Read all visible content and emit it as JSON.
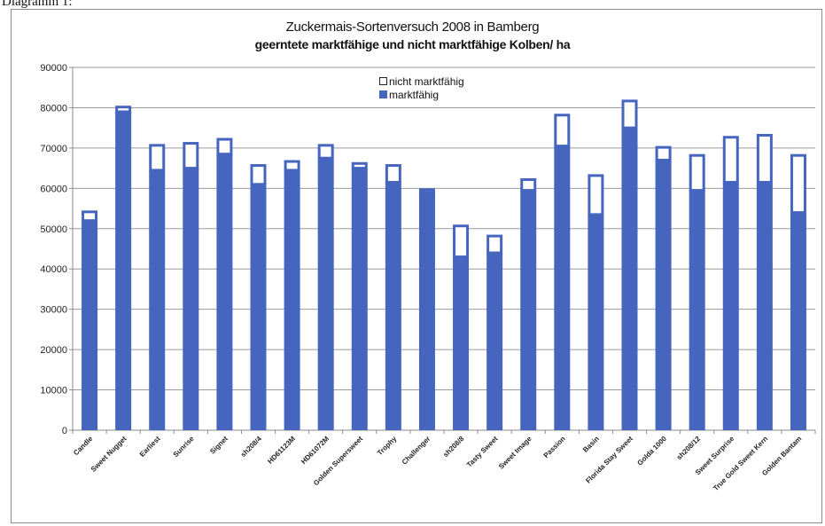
{
  "caption": "Diagramm 1:",
  "chart_data": {
    "type": "bar",
    "stacked": true,
    "title": "Zuckermais-Sortenversuch 2008 in Bamberg",
    "subtitle": "geerntete marktfähige und nicht marktfähige Kolben/ ha",
    "ylim": [
      0,
      90000
    ],
    "yticks": [
      0,
      10000,
      20000,
      30000,
      40000,
      50000,
      60000,
      70000,
      80000,
      90000
    ],
    "grid": true,
    "legend_position": "top-center",
    "categories": [
      "Candle",
      "Sweet Nugget",
      "Earliest",
      "Sunrise",
      "Signet",
      "sh208/4",
      "HD61123M",
      "HD61072M",
      "Golden Supersweet",
      "Trophy",
      "Challenger",
      "sh208/8",
      "Tasty Sweet",
      "Sweet Image",
      "Passion",
      "Basin",
      "Florida Stay Sweet",
      "Golda 1000",
      "sh208/12",
      "Sweet Surprise",
      "True Gold Sweet Kern",
      "Golden Bantam"
    ],
    "series": [
      {
        "name": "marktfähig",
        "color": "#4565bf",
        "values": [
          52000,
          79000,
          64500,
          65000,
          68500,
          61000,
          64500,
          67500,
          65000,
          61500,
          59000,
          43000,
          44000,
          59500,
          70500,
          53500,
          75000,
          67000,
          59500,
          61500,
          61500,
          54000
        ]
      },
      {
        "name": "nicht marktfähig",
        "color": "#ffffff",
        "values": [
          2500,
          1500,
          6500,
          6500,
          4000,
          5000,
          2500,
          3500,
          1500,
          4500,
          1000,
          8000,
          4500,
          3000,
          8000,
          10000,
          7000,
          3500,
          9000,
          11500,
          12000,
          14500
        ]
      }
    ]
  }
}
